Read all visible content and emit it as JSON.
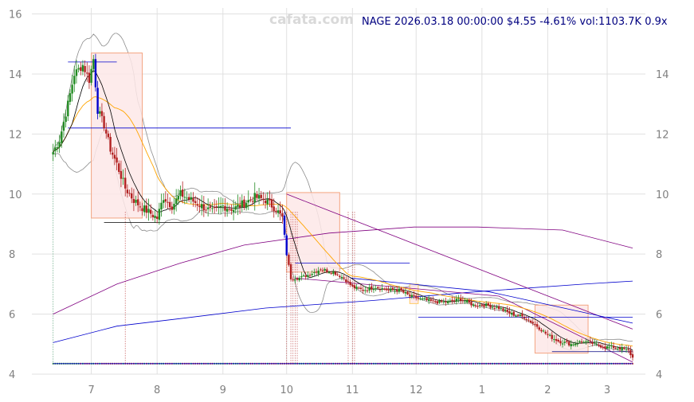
{
  "watermark": "cafata.com",
  "header": {
    "symbol": "NAGE",
    "datetime": "2026.03.18 00:00:00",
    "price": "$4.55",
    "change": "-4.61%",
    "volume": "vol:1103.7K",
    "ratio": "0.9x"
  },
  "chart_data": {
    "type": "candlestick",
    "title": "",
    "xlabel": "",
    "ylabel": "",
    "ylim": [
      4,
      16.2
    ],
    "y_ticks_left": [
      4,
      6,
      8,
      10,
      12,
      14,
      16
    ],
    "y_ticks_right": [
      4,
      6,
      8,
      10,
      12,
      14
    ],
    "x_ticks": [
      {
        "label": "7",
        "day": 18
      },
      {
        "label": "8",
        "day": 49
      },
      {
        "label": "9",
        "day": 80
      },
      {
        "label": "10",
        "day": 110
      },
      {
        "label": "11",
        "day": 141
      },
      {
        "label": "12",
        "day": 171
      },
      {
        "label": "1",
        "day": 202
      },
      {
        "label": "2",
        "day": 233
      },
      {
        "label": "3",
        "day": 261
      }
    ],
    "x_range_days": [
      -10,
      279
    ],
    "last_close": 4.55,
    "close_anchors": [
      [
        0,
        11.4
      ],
      [
        3,
        11.8
      ],
      [
        7,
        13.0
      ],
      [
        10,
        14.0
      ],
      [
        14,
        14.3
      ],
      [
        17,
        13.8
      ],
      [
        19,
        14.5
      ],
      [
        21,
        12.8
      ],
      [
        24,
        12.3
      ],
      [
        27,
        11.5
      ],
      [
        30,
        11.0
      ],
      [
        34,
        10.2
      ],
      [
        38,
        9.8
      ],
      [
        41,
        9.6
      ],
      [
        45,
        9.4
      ],
      [
        49,
        9.2
      ],
      [
        52,
        9.9
      ],
      [
        56,
        9.6
      ],
      [
        60,
        10.0
      ],
      [
        65,
        9.8
      ],
      [
        70,
        9.6
      ],
      [
        75,
        9.4
      ],
      [
        80,
        9.6
      ],
      [
        85,
        9.5
      ],
      [
        90,
        9.7
      ],
      [
        95,
        9.9
      ],
      [
        100,
        9.8
      ],
      [
        105,
        9.5
      ],
      [
        108,
        9.2
      ],
      [
        110,
        8.0
      ],
      [
        112,
        7.2
      ],
      [
        116,
        7.2
      ],
      [
        120,
        7.3
      ],
      [
        126,
        7.5
      ],
      [
        132,
        7.4
      ],
      [
        137,
        7.2
      ],
      [
        141,
        6.9
      ],
      [
        146,
        6.8
      ],
      [
        152,
        6.9
      ],
      [
        158,
        6.8
      ],
      [
        163,
        6.8
      ],
      [
        168,
        6.6
      ],
      [
        173,
        6.5
      ],
      [
        180,
        6.4
      ],
      [
        186,
        6.4
      ],
      [
        192,
        6.5
      ],
      [
        198,
        6.3
      ],
      [
        204,
        6.3
      ],
      [
        210,
        6.2
      ],
      [
        216,
        6.0
      ],
      [
        222,
        5.9
      ],
      [
        228,
        5.6
      ],
      [
        233,
        5.3
      ],
      [
        238,
        5.1
      ],
      [
        244,
        5.0
      ],
      [
        250,
        5.1
      ],
      [
        255,
        5.0
      ],
      [
        260,
        4.9
      ],
      [
        264,
        4.9
      ],
      [
        268,
        4.85
      ],
      [
        271,
        4.77
      ],
      [
        273,
        4.55
      ]
    ],
    "series": [
      {
        "name": "",
        "kind": "moving-average-short",
        "color": "#000000"
      },
      {
        "name": "",
        "kind": "moving-average-mid",
        "color": "#ffa500"
      },
      {
        "name": "",
        "kind": "moving-average-long",
        "color": "#800080",
        "points": [
          [
            0,
            6.0
          ],
          [
            30,
            7.0
          ],
          [
            60,
            7.7
          ],
          [
            90,
            8.3
          ],
          [
            130,
            8.7
          ],
          [
            170,
            8.9
          ],
          [
            200,
            8.9
          ],
          [
            240,
            8.8
          ],
          [
            273,
            8.2
          ]
        ]
      },
      {
        "name": "",
        "kind": "trend-line",
        "color": "#0000cd",
        "points": [
          [
            0,
            5.05
          ],
          [
            30,
            5.6
          ],
          [
            60,
            5.85
          ],
          [
            100,
            6.2
          ],
          [
            150,
            6.45
          ],
          [
            200,
            6.75
          ],
          [
            250,
            7.0
          ],
          [
            273,
            7.1
          ]
        ]
      },
      {
        "name": "",
        "kind": "bollinger-bands",
        "color": "#808080"
      }
    ],
    "shaded_boxes": [
      {
        "x0": 18,
        "x1": 42,
        "y0": 9.2,
        "y1": 14.7,
        "color": "#f4a582"
      },
      {
        "x0": 110,
        "x1": 135,
        "y0": 7.4,
        "y1": 10.05,
        "color": "#f4a582"
      },
      {
        "x0": 168,
        "x1": 172,
        "y0": 6.35,
        "y1": 7.0,
        "color": "#ffcc66"
      },
      {
        "x0": 227,
        "x1": 252,
        "y0": 4.7,
        "y1": 6.3,
        "color": "#f4a582"
      }
    ],
    "support_resistance_lines": [
      {
        "x0": 7,
        "x1": 30,
        "y": 14.4,
        "color": "#0000cd"
      },
      {
        "x0": 7,
        "x1": 112,
        "y": 12.2,
        "color": "#0000cd"
      },
      {
        "x0": 24,
        "x1": 108,
        "y": 9.05,
        "color": "#000000"
      },
      {
        "x0": 114,
        "x1": 168,
        "y": 7.7,
        "color": "#0000cd"
      },
      {
        "x0": 172,
        "x1": 273,
        "y": 5.9,
        "color": "#0000cd"
      },
      {
        "x0": 235,
        "x1": 273,
        "y": 4.75,
        "color": "#000080"
      }
    ],
    "diagonal_lines": [
      {
        "points": [
          [
            110,
            10.0
          ],
          [
            273,
            5.5
          ]
        ],
        "color": "#800080"
      },
      {
        "points": [
          [
            114,
            7.2
          ],
          [
            210,
            6.6
          ],
          [
            273,
            4.4
          ]
        ],
        "color": "#800080"
      },
      {
        "points": [
          [
            140,
            7.2
          ],
          [
            205,
            6.75
          ],
          [
            273,
            5.7
          ]
        ],
        "color": "#0000cd"
      }
    ],
    "vertical_markers": [
      0,
      34,
      110,
      112,
      113,
      114,
      115,
      139,
      141,
      142
    ],
    "volume_baseline": 4.35,
    "colors": {
      "up": "#228b22",
      "down": "#b22222",
      "signal": "#0000cd",
      "grid": "#e0e0e0",
      "tick": "#808080"
    }
  }
}
